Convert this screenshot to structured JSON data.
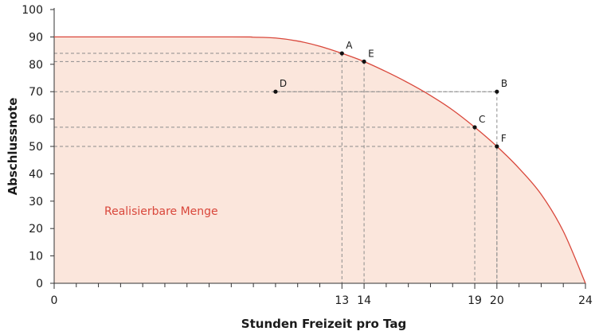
{
  "chart_data": {
    "type": "area",
    "title": "",
    "xlabel": "Stunden Freizeit pro Tag",
    "ylabel": "Abschlussnote",
    "xlim": [
      0,
      24
    ],
    "ylim": [
      0,
      100
    ],
    "x_ticks": [
      0,
      13,
      14,
      19,
      20,
      24
    ],
    "x_tick_labels": [
      "0",
      "13",
      "14",
      "19",
      "20",
      "24"
    ],
    "x_minor_ticks": [
      1,
      2,
      3,
      4,
      5,
      6,
      7,
      8,
      9,
      10,
      11,
      12,
      15,
      16,
      17,
      18,
      21,
      22,
      23
    ],
    "y_ticks": [
      0,
      10,
      20,
      30,
      40,
      50,
      60,
      70,
      80,
      90,
      100
    ],
    "y_tick_labels": [
      "0",
      "10",
      "20",
      "30",
      "40",
      "50",
      "60",
      "70",
      "80",
      "90",
      "100"
    ],
    "grid": false,
    "region_label": "Realisierbare Menge",
    "series": [
      {
        "x": [
          0,
          8,
          9,
          10,
          11,
          12,
          13,
          14,
          15,
          16,
          17,
          18,
          19,
          20,
          21,
          22,
          23,
          24
        ],
        "y": [
          90,
          90,
          89.9,
          89.6,
          88.5,
          86.6,
          84,
          81,
          77.3,
          73.2,
          68.6,
          63.3,
          57,
          50,
          42,
          32.5,
          19,
          0
        ]
      }
    ],
    "points": [
      {
        "label": "A",
        "x": 13,
        "y": 84
      },
      {
        "label": "E",
        "x": 14,
        "y": 81
      },
      {
        "label": "D",
        "x": 10,
        "y": 70
      },
      {
        "label": "B",
        "x": 20,
        "y": 70
      },
      {
        "label": "C",
        "x": 19,
        "y": 57
      },
      {
        "label": "F",
        "x": 20,
        "y": 50
      }
    ],
    "reference_lines": [
      {
        "x": 13,
        "y": 84
      },
      {
        "x": 14,
        "y": 81
      },
      {
        "x": 20,
        "y": 70
      },
      {
        "x": 19,
        "y": 57
      },
      {
        "x": 20,
        "y": 50
      }
    ],
    "colors": {
      "curve": "#d9473b",
      "fill": "#fbe6dc",
      "region_label": "#d9473b",
      "axis": "#333333",
      "reference": "#8c8c8c",
      "point": "#111111"
    }
  }
}
